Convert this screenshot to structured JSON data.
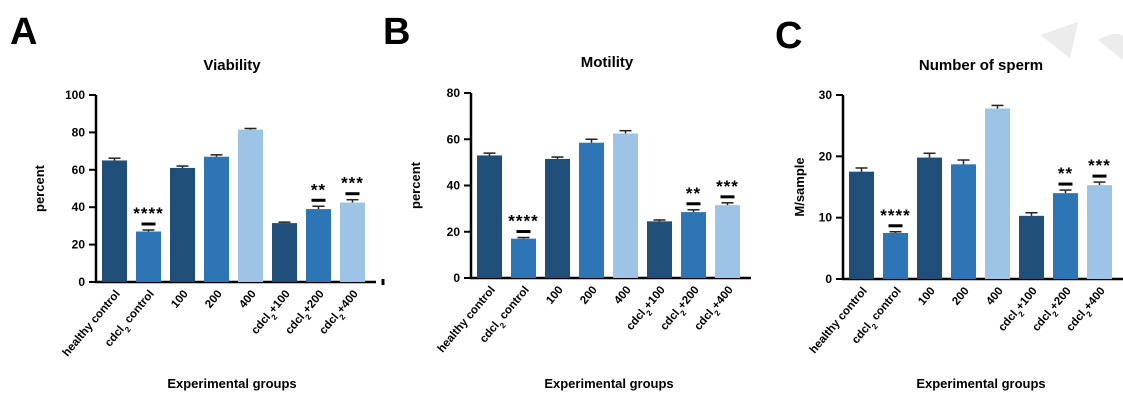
{
  "figure": {
    "panels": [
      "A",
      "B",
      "C"
    ],
    "colors": {
      "navy": "#1f4e79",
      "mid": "#2e75b6",
      "light": "#9dc3e6",
      "axis": "#000000"
    }
  },
  "chart_data": [
    {
      "type": "bar",
      "panel": "A",
      "title": "Viability",
      "xlabel": "Experimental groups",
      "ylabel": "percent",
      "ylim": [
        0,
        100
      ],
      "yticks": [
        0,
        20,
        40,
        60,
        80,
        100
      ],
      "categories": [
        "healthy control",
        "cdcl2 control",
        "100",
        "200",
        "400",
        "cdcl2+100",
        "cdcl2+200",
        "cdcl2+400"
      ],
      "category_labels": [
        {
          "pre": "healthy control",
          "sub": "",
          "post": ""
        },
        {
          "pre": "cdcl",
          "sub": "2",
          "post": " control"
        },
        {
          "pre": "100",
          "sub": "",
          "post": ""
        },
        {
          "pre": "200",
          "sub": "",
          "post": ""
        },
        {
          "pre": "400",
          "sub": "",
          "post": ""
        },
        {
          "pre": "cdcl",
          "sub": "2",
          "post": "+100"
        },
        {
          "pre": "cdcl",
          "sub": "2",
          "post": "+200"
        },
        {
          "pre": "cdcl",
          "sub": "2",
          "post": "+400"
        }
      ],
      "values": [
        65,
        27,
        61,
        67,
        81.5,
        31.5,
        39,
        42.5
      ],
      "errors": [
        1.2,
        0.8,
        1.0,
        1.0,
        0.6,
        0.5,
        1.5,
        1.5
      ],
      "colors": [
        "navy",
        "mid",
        "navy",
        "mid",
        "light",
        "navy",
        "mid",
        "light"
      ],
      "significance": [
        "",
        "****",
        "",
        "",
        "",
        "",
        "**",
        "***"
      ],
      "grid": false
    },
    {
      "type": "bar",
      "panel": "B",
      "title": "Motility",
      "xlabel": "Experimental groups",
      "ylabel": "percent",
      "ylim": [
        0,
        80
      ],
      "yticks": [
        0,
        20,
        40,
        60,
        80
      ],
      "categories": [
        "healthy control",
        "cdcl2 control",
        "100",
        "200",
        "400",
        "cdcl2+100",
        "cdcl2+200",
        "cdcl2+400"
      ],
      "category_labels": [
        {
          "pre": "healthy control",
          "sub": "",
          "post": ""
        },
        {
          "pre": "cdcl",
          "sub": "2",
          "post": " control"
        },
        {
          "pre": "100",
          "sub": "",
          "post": ""
        },
        {
          "pre": "200",
          "sub": "",
          "post": ""
        },
        {
          "pre": "400",
          "sub": "",
          "post": ""
        },
        {
          "pre": "cdcl",
          "sub": "2",
          "post": "+100"
        },
        {
          "pre": "cdcl",
          "sub": "2",
          "post": "+200"
        },
        {
          "pre": "cdcl",
          "sub": "2",
          "post": "+400"
        }
      ],
      "values": [
        53,
        17,
        51.5,
        58.5,
        62.5,
        24.5,
        28.5,
        31.5
      ],
      "errors": [
        1.0,
        0.5,
        0.8,
        1.5,
        1.2,
        0.6,
        1.0,
        1.0
      ],
      "colors": [
        "navy",
        "mid",
        "navy",
        "mid",
        "light",
        "navy",
        "mid",
        "light"
      ],
      "significance": [
        "",
        "****",
        "",
        "",
        "",
        "",
        "**",
        "***"
      ],
      "grid": false
    },
    {
      "type": "bar",
      "panel": "C",
      "title": "Number of sperm",
      "xlabel": "Experimental groups",
      "ylabel": "M/sample",
      "ylim": [
        0,
        30
      ],
      "yticks": [
        0,
        10,
        20,
        30
      ],
      "categories": [
        "healthy control",
        "cdcl2 control",
        "100",
        "200",
        "400",
        "cdcl2+100",
        "cdcl2+200",
        "cdcl2+400"
      ],
      "category_labels": [
        {
          "pre": "healthy control",
          "sub": "",
          "post": ""
        },
        {
          "pre": "cdcl",
          "sub": "2",
          "post": " control"
        },
        {
          "pre": "100",
          "sub": "",
          "post": ""
        },
        {
          "pre": "200",
          "sub": "",
          "post": ""
        },
        {
          "pre": "400",
          "sub": "",
          "post": ""
        },
        {
          "pre": "cdcl",
          "sub": "2",
          "post": "+100"
        },
        {
          "pre": "cdcl",
          "sub": "2",
          "post": "+200"
        },
        {
          "pre": "cdcl",
          "sub": "2",
          "post": "+400"
        }
      ],
      "values": [
        17.5,
        7.5,
        19.8,
        18.7,
        27.8,
        10.3,
        14,
        15.3
      ],
      "errors": [
        0.6,
        0.2,
        0.7,
        0.7,
        0.5,
        0.5,
        0.5,
        0.5
      ],
      "colors": [
        "navy",
        "mid",
        "navy",
        "mid",
        "light",
        "navy",
        "mid",
        "light"
      ],
      "significance": [
        "",
        "****",
        "",
        "",
        "",
        "",
        "**",
        "***"
      ],
      "grid": false
    }
  ]
}
